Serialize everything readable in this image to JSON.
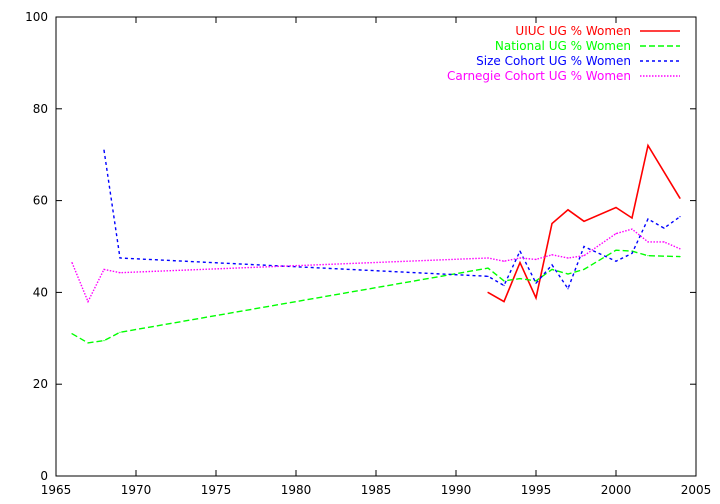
{
  "chart_data": {
    "type": "line",
    "title": "",
    "xlabel": "",
    "ylabel": "",
    "xlim": [
      1965,
      2005
    ],
    "ylim": [
      0,
      100
    ],
    "x_ticks": [
      "1965",
      "1970",
      "1975",
      "1980",
      "1985",
      "1990",
      "1995",
      "2000",
      "2005"
    ],
    "y_ticks": [
      "0",
      "20",
      "40",
      "60",
      "80",
      "100"
    ],
    "grid": false,
    "legend_position": "top-right",
    "series": [
      {
        "name": "UIUC UG % Women",
        "color": "#ff0000",
        "dash": "solid",
        "points": [
          [
            1992,
            40.0
          ],
          [
            1993,
            38.0
          ],
          [
            1994,
            46.5
          ],
          [
            1995,
            38.8
          ],
          [
            1996,
            55.0
          ],
          [
            1997,
            58.0
          ],
          [
            1998,
            55.5
          ],
          [
            2000,
            58.5
          ],
          [
            2001,
            56.2
          ],
          [
            2002,
            72.0
          ],
          [
            2004,
            60.5
          ]
        ]
      },
      {
        "name": "National UG % Women",
        "color": "#00ff00",
        "dash": "dashed",
        "points": [
          [
            1966,
            31.0
          ],
          [
            1967,
            29.0
          ],
          [
            1968,
            29.5
          ],
          [
            1969,
            31.3
          ],
          [
            1992,
            45.3
          ],
          [
            1993,
            42.5
          ],
          [
            1994,
            43.0
          ],
          [
            1995,
            42.5
          ],
          [
            1996,
            45.0
          ],
          [
            1997,
            44.0
          ],
          [
            1998,
            45.0
          ],
          [
            2000,
            49.2
          ],
          [
            2001,
            49.0
          ],
          [
            2002,
            48.0
          ],
          [
            2004,
            47.8
          ]
        ]
      },
      {
        "name": "Size Cohort UG % Women",
        "color": "#0000ff",
        "dash": "dotted",
        "points": [
          [
            1968,
            71.0
          ],
          [
            1969,
            47.5
          ],
          [
            1992,
            43.5
          ],
          [
            1993,
            41.5
          ],
          [
            1994,
            49.0
          ],
          [
            1995,
            42.0
          ],
          [
            1996,
            46.0
          ],
          [
            1997,
            40.8
          ],
          [
            1998,
            50.0
          ],
          [
            2000,
            46.8
          ],
          [
            2001,
            48.5
          ],
          [
            2002,
            56.0
          ],
          [
            2003,
            54.0
          ],
          [
            2004,
            56.5
          ]
        ]
      },
      {
        "name": "Carnegie Cohort UG % Women",
        "color": "#ff00ff",
        "dash": "dotted-fine",
        "points": [
          [
            1966,
            46.5
          ],
          [
            1967,
            38.0
          ],
          [
            1968,
            45.0
          ],
          [
            1969,
            44.3
          ],
          [
            1992,
            47.5
          ],
          [
            1993,
            46.8
          ],
          [
            1994,
            47.5
          ],
          [
            1995,
            47.2
          ],
          [
            1996,
            48.2
          ],
          [
            1997,
            47.5
          ],
          [
            1998,
            48.0
          ],
          [
            2000,
            52.8
          ],
          [
            2001,
            53.8
          ],
          [
            2002,
            51.0
          ],
          [
            2003,
            51.0
          ],
          [
            2004,
            49.5
          ]
        ]
      }
    ]
  }
}
